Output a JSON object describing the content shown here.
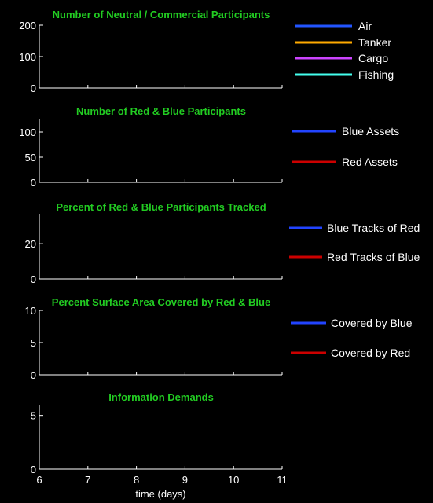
{
  "colors": {
    "background": "#000000",
    "title": "#22cc22",
    "axis": "#ffffff",
    "text": "#ffffff"
  },
  "chart_data": [
    {
      "type": "line",
      "title": "Number of Neutral / Commercial Participants",
      "xlim": [
        6,
        11
      ],
      "ylim": [
        0,
        200
      ],
      "yticks": [
        0,
        100,
        200
      ],
      "legend_placement": "right",
      "series": [
        {
          "name": "Air",
          "color": "#2255ff",
          "x": [],
          "y": []
        },
        {
          "name": "Tanker",
          "color": "#ffaa00",
          "x": [],
          "y": []
        },
        {
          "name": "Cargo",
          "color": "#cc44ff",
          "x": [],
          "y": []
        },
        {
          "name": "Fishing",
          "color": "#44ffee",
          "x": [],
          "y": []
        }
      ]
    },
    {
      "type": "line",
      "title": "Number of Red & Blue Participants",
      "xlim": [
        6,
        11
      ],
      "ylim": [
        0,
        125
      ],
      "yticks": [
        0,
        50,
        100
      ],
      "legend_placement": "right",
      "series": [
        {
          "name": "Blue Assets",
          "color": "#2244ff",
          "x": [],
          "y": []
        },
        {
          "name": "Red Assets",
          "color": "#cc0000",
          "x": [],
          "y": []
        }
      ]
    },
    {
      "type": "line",
      "title": "Percent of Red & Blue Participants Tracked",
      "xlim": [
        6,
        11
      ],
      "ylim": [
        0,
        37
      ],
      "yticks": [
        0,
        20
      ],
      "legend_placement": "right",
      "series": [
        {
          "name": "Blue Tracks of Red",
          "color": "#2244ff",
          "x": [],
          "y": []
        },
        {
          "name": "Red Tracks of Blue",
          "color": "#cc0000",
          "x": [],
          "y": []
        }
      ]
    },
    {
      "type": "line",
      "title": "Percent Surface Area Covered by Red & Blue",
      "xlim": [
        6,
        11
      ],
      "ylim": [
        0,
        10
      ],
      "yticks": [
        0,
        5,
        10
      ],
      "legend_placement": "right",
      "series": [
        {
          "name": "Covered by Blue",
          "color": "#2244ff",
          "x": [],
          "y": []
        },
        {
          "name": "Covered by Red",
          "color": "#cc0000",
          "x": [],
          "y": []
        }
      ]
    },
    {
      "type": "line",
      "title": "Information Demands",
      "xlim": [
        6,
        11
      ],
      "ylim": [
        0,
        6
      ],
      "yticks": [
        0,
        5
      ],
      "xticks": [
        6,
        7,
        8,
        9,
        10,
        11
      ],
      "xlabel": "time (days)",
      "series": []
    }
  ]
}
